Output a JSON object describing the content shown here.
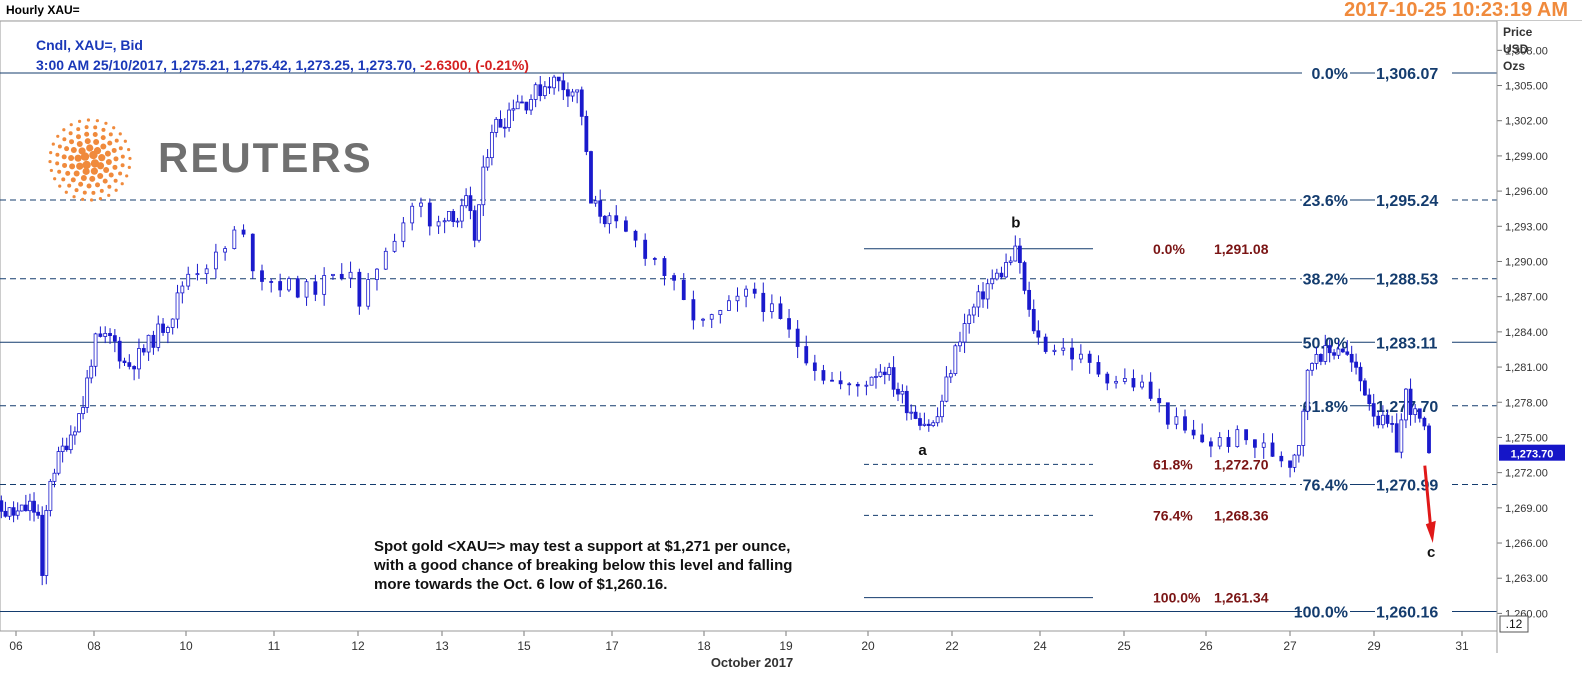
{
  "window": {
    "title": "Hourly XAU=",
    "timestamp": "2017-10-25 10:23:19 AM"
  },
  "legend": {
    "line1": "Cndl, XAU=, Bid",
    "line2": "3:00 AM 25/10/2017, 1,275.21, 1,275.42, 1,273.25, 1,273.70,",
    "change": "-2.6300, (-0.21%)"
  },
  "price_axis_title": [
    "Price",
    "USD",
    "Ozs"
  ],
  "logo": {
    "text": "REUTERS"
  },
  "annotation": [
    "Spot gold <XAU=> may test a support at $1,271 per ounce,",
    "with a good chance of breaking below this level and falling",
    "more towards the Oct. 6 low of $1,260.16."
  ],
  "colors": {
    "candle_up": "#ffffff",
    "candle_down": "#1a1acc",
    "candle_outline": "#1a1acc",
    "fib_main": "#143c6e",
    "fib_secondary": "#7a1414",
    "arrow": "#e01818",
    "last_price_tag": "#1515c8",
    "timestamp": "#f08a3c"
  },
  "chart_data": {
    "type": "candlestick",
    "title": "Hourly XAU=",
    "series_name": "XAU=",
    "xlabel": "October 2017",
    "ylabel": "Price USD Ozs",
    "ylim": [
      1258.5,
      1310.5
    ],
    "y_ticks": [
      "1,260.00",
      "1,263.00",
      "1,266.00",
      "1,269.00",
      "1,272.00",
      "1,275.00",
      "1,278.00",
      "1,281.00",
      "1,284.00",
      "1,287.00",
      "1,290.00",
      "1,293.00",
      "1,296.00",
      "1,299.00",
      "1,302.00",
      "1,305.00",
      "1,308.00"
    ],
    "y_tick_values": [
      1260,
      1263,
      1266,
      1269,
      1272,
      1275,
      1278,
      1281,
      1284,
      1287,
      1290,
      1293,
      1296,
      1299,
      1302,
      1305,
      1308
    ],
    "x_ticks": [
      "06",
      "08",
      "10",
      "11",
      "12",
      "13",
      "15",
      "17",
      "18",
      "19",
      "20",
      "22",
      "24",
      "25",
      "26",
      "27",
      "29",
      "31"
    ],
    "x_tick_days": [
      6,
      8,
      10,
      11,
      12,
      13,
      15,
      17,
      18,
      19,
      20,
      22,
      24,
      25,
      26,
      27,
      29,
      31
    ],
    "last_price": 1273.7,
    "last_price_label": "1,273.70",
    "corner_label": ".12",
    "price_path": [
      [
        5.1,
        1268.5
      ],
      [
        5.5,
        1268.9
      ],
      [
        6.0,
        1268.4
      ],
      [
        6.4,
        1269.2
      ],
      [
        6.6,
        1268.0
      ],
      [
        6.7,
        1260.5
      ],
      [
        6.8,
        1271.0
      ],
      [
        7.2,
        1274.0
      ],
      [
        7.7,
        1277.5
      ],
      [
        8.0,
        1283.0
      ],
      [
        8.4,
        1283.5
      ],
      [
        8.7,
        1281.0
      ],
      [
        9.0,
        1282.0
      ],
      [
        9.4,
        1284.0
      ],
      [
        9.7,
        1285.5
      ],
      [
        10.0,
        1289.0
      ],
      [
        10.4,
        1290.5
      ],
      [
        10.6,
        1293.0
      ],
      [
        10.8,
        1289.0
      ],
      [
        11.1,
        1288.0
      ],
      [
        11.4,
        1287.5
      ],
      [
        11.7,
        1288.5
      ],
      [
        11.9,
        1290.0
      ],
      [
        12.0,
        1285.5
      ],
      [
        12.3,
        1291.0
      ],
      [
        12.5,
        1293.0
      ],
      [
        12.7,
        1295.5
      ],
      [
        12.9,
        1292.0
      ],
      [
        13.0,
        1294.0
      ],
      [
        13.2,
        1294.5
      ],
      [
        13.4,
        1293.5
      ],
      [
        13.6,
        1295.0
      ],
      [
        13.8,
        1292.0
      ],
      [
        13.95,
        1296.0
      ],
      [
        14.2,
        1301.5
      ],
      [
        14.5,
        1302.0
      ],
      [
        14.8,
        1304.0
      ],
      [
        15.0,
        1303.5
      ],
      [
        15.3,
        1304.5
      ],
      [
        15.6,
        1305.5
      ],
      [
        15.9,
        1305.0
      ],
      [
        16.2,
        1304.5
      ],
      [
        16.35,
        1302.0
      ],
      [
        16.5,
        1295.0
      ],
      [
        16.8,
        1294.0
      ],
      [
        17.2,
        1292.0
      ],
      [
        17.5,
        1290.0
      ],
      [
        17.8,
        1286.0
      ],
      [
        18.0,
        1284.5
      ],
      [
        18.3,
        1286.0
      ],
      [
        18.6,
        1287.5
      ],
      [
        18.9,
        1285.0
      ],
      [
        19.2,
        1282.5
      ],
      [
        19.5,
        1280.0
      ],
      [
        19.8,
        1279.0
      ],
      [
        20.1,
        1280.5
      ],
      [
        20.4,
        1281.0
      ],
      [
        20.7,
        1279.0
      ],
      [
        21.0,
        1277.5
      ],
      [
        21.3,
        1276.5
      ],
      [
        21.6,
        1276.0
      ],
      [
        21.9,
        1280.0
      ],
      [
        22.2,
        1284.0
      ],
      [
        22.5,
        1286.0
      ],
      [
        22.8,
        1288.0
      ],
      [
        23.1,
        1289.0
      ],
      [
        23.3,
        1290.0
      ],
      [
        23.5,
        1291.0
      ],
      [
        23.7,
        1286.0
      ],
      [
        24.0,
        1283.0
      ],
      [
        24.3,
        1282.5
      ],
      [
        24.6,
        1281.0
      ],
      [
        24.9,
        1280.0
      ],
      [
        25.2,
        1279.5
      ],
      [
        25.5,
        1277.0
      ],
      [
        25.8,
        1275.0
      ],
      [
        26.1,
        1274.5
      ],
      [
        26.4,
        1275.0
      ],
      [
        26.7,
        1274.0
      ],
      [
        27.0,
        1273.0
      ],
      [
        27.2,
        1274.5
      ],
      [
        27.4,
        1280.0
      ],
      [
        27.6,
        1282.5
      ],
      [
        27.9,
        1282.0
      ],
      [
        28.2,
        1283.0
      ],
      [
        28.5,
        1281.0
      ],
      [
        28.8,
        1279.0
      ],
      [
        29.1,
        1276.5
      ],
      [
        29.4,
        1275.5
      ],
      [
        29.55,
        1274.0
      ],
      [
        29.7,
        1279.0
      ],
      [
        29.9,
        1277.0
      ],
      [
        30.1,
        1276.0
      ],
      [
        30.25,
        1273.7
      ]
    ],
    "fib_main": [
      {
        "level": "0.0%",
        "label": "1,306.07",
        "price": 1306.07,
        "style": "solid"
      },
      {
        "level": "23.6%",
        "label": "1,295.24",
        "price": 1295.24,
        "style": "dashed"
      },
      {
        "level": "38.2%",
        "label": "1,288.53",
        "price": 1288.53,
        "style": "dashed"
      },
      {
        "level": "50.0%",
        "label": "1,283.11",
        "price": 1283.11,
        "style": "solid"
      },
      {
        "level": "61.8%",
        "label": "1,277.70",
        "price": 1277.7,
        "style": "dashed"
      },
      {
        "level": "76.4%",
        "label": "1,270.99",
        "price": 1270.99,
        "style": "dashed"
      },
      {
        "level": "100.0%",
        "label": "1,260.16",
        "price": 1260.16,
        "style": "solid"
      }
    ],
    "fib_secondary": [
      {
        "level": "0.0%",
        "label": "1,291.08",
        "price": 1291.08,
        "style": "solid"
      },
      {
        "level": "61.8%",
        "label": "1,272.70",
        "price": 1272.7,
        "style": "dashed"
      },
      {
        "level": "76.4%",
        "label": "1,268.36",
        "price": 1268.36,
        "style": "dashed"
      },
      {
        "level": "100.0%",
        "label": "1,261.34",
        "price": 1261.34,
        "style": "solid"
      }
    ],
    "wave_labels": [
      {
        "text": "a",
        "day": 21.3,
        "price": 1274.0
      },
      {
        "text": "b",
        "day": 23.45,
        "price": 1293.4
      },
      {
        "text": "c",
        "day": 30.3,
        "price": 1265.3
      }
    ]
  }
}
